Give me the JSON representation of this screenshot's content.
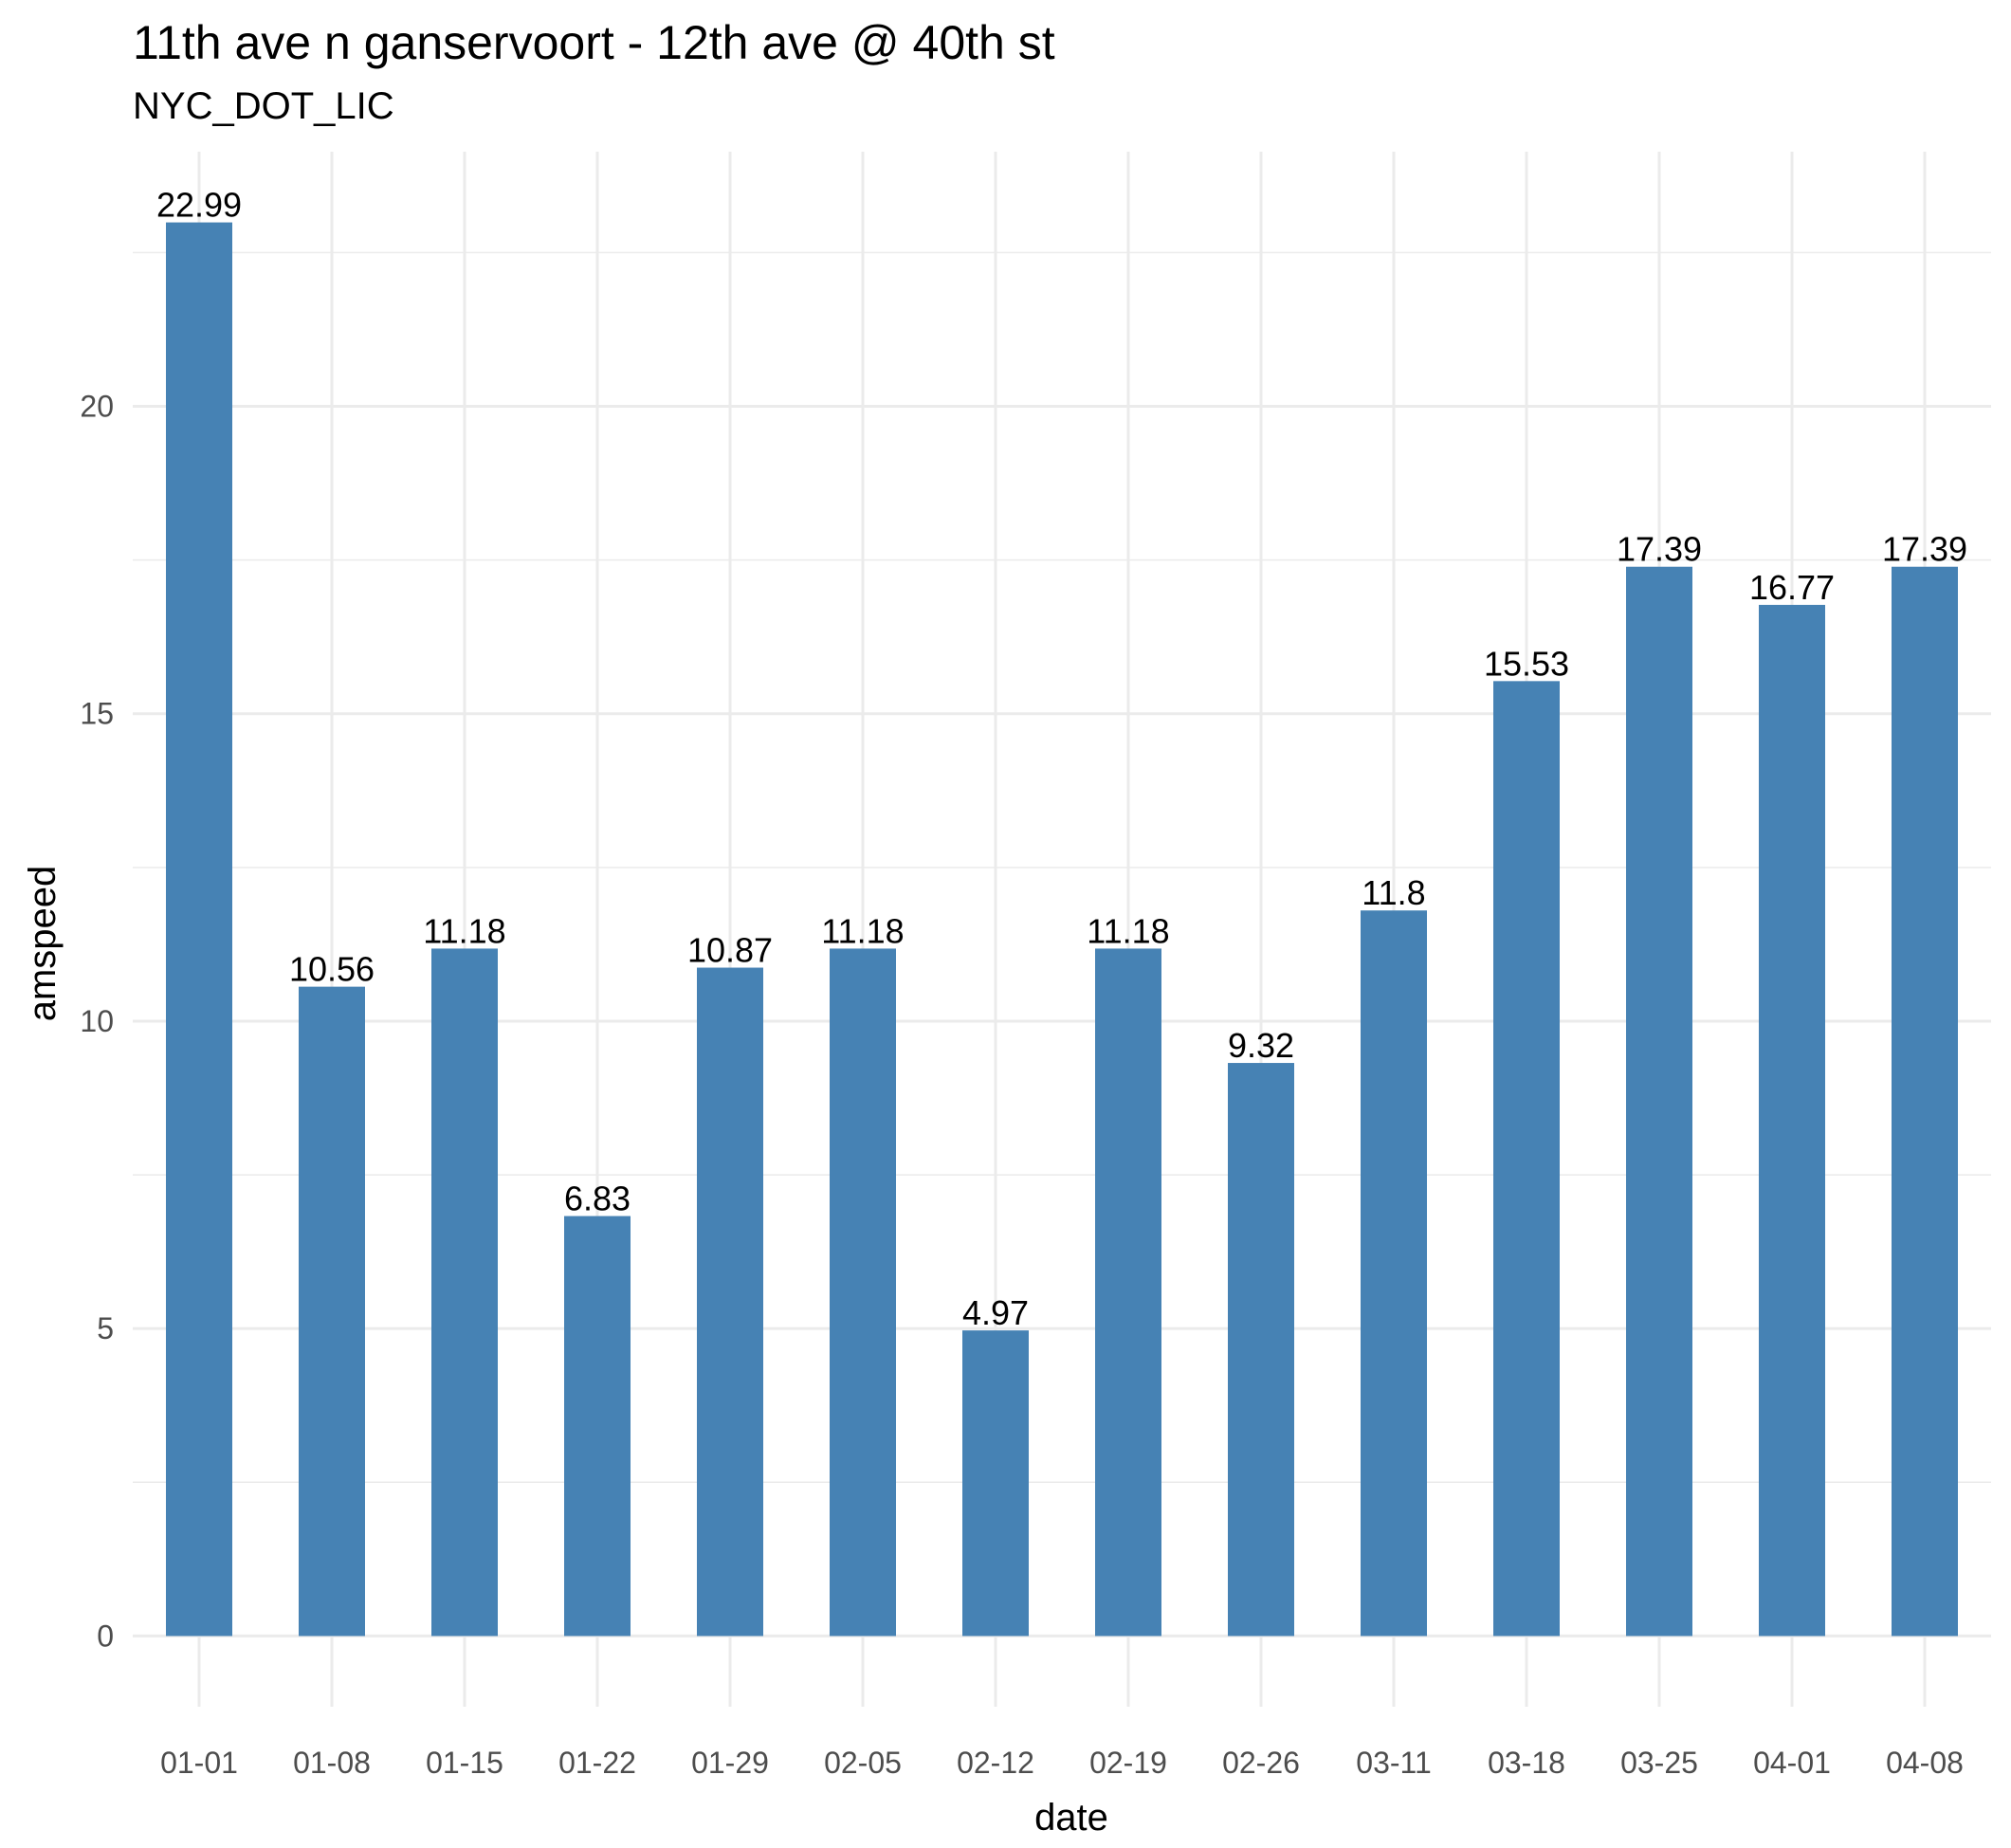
{
  "chart_data": {
    "type": "bar",
    "title": "11th ave n ganservoort - 12th ave @ 40th st",
    "subtitle": "NYC_DOT_LIC",
    "xlabel": "date",
    "ylabel": "amspeed",
    "categories": [
      "01-01",
      "01-08",
      "01-15",
      "01-22",
      "01-29",
      "02-05",
      "02-12",
      "02-19",
      "02-26",
      "03-11",
      "03-18",
      "03-25",
      "04-01",
      "04-08"
    ],
    "values": [
      22.99,
      10.56,
      11.18,
      6.83,
      10.87,
      11.18,
      4.97,
      11.18,
      9.32,
      11.8,
      15.53,
      17.39,
      16.77,
      17.39
    ],
    "data_labels": [
      "22.99",
      "10.56",
      "11.18",
      "6.83",
      "10.87",
      "11.18",
      "4.97",
      "11.18",
      "9.32",
      "11.8",
      "15.53",
      "17.39",
      "16.77",
      "17.39"
    ],
    "yticks": [
      0,
      5,
      10,
      15,
      20
    ],
    "ylim": [
      -1.15,
      24.14
    ],
    "grid": true,
    "legend": "none",
    "bar_color": "#4682b4",
    "grid_color": "#ebebeb"
  }
}
